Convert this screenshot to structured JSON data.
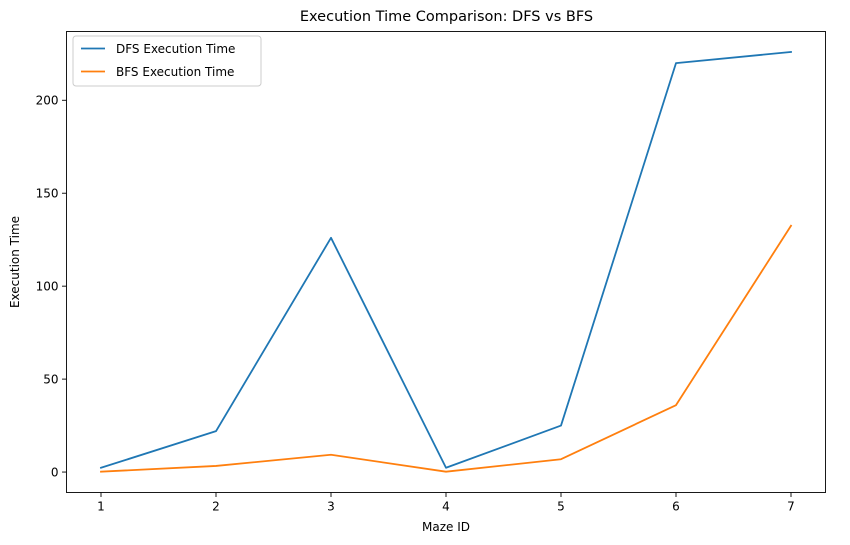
{
  "chart_data": {
    "type": "line",
    "title": "Execution Time Comparison: DFS vs BFS",
    "xlabel": "Maze ID",
    "ylabel": "Execution Time",
    "x": [
      1,
      2,
      3,
      4,
      5,
      6,
      7
    ],
    "xlim": [
      0.7,
      7.3
    ],
    "ylim": [
      -11,
      237
    ],
    "xticks": [
      1,
      2,
      3,
      4,
      5,
      6,
      7
    ],
    "yticks": [
      0,
      50,
      100,
      150,
      200
    ],
    "grid": false,
    "legend_position": "top-left",
    "series": [
      {
        "name": "DFS Execution Time",
        "color": "#1f77b4",
        "values": [
          2.3,
          22,
          126,
          2.3,
          25,
          220,
          226
        ]
      },
      {
        "name": "BFS Execution Time",
        "color": "#ff7f0e",
        "values": [
          0.2,
          3.3,
          9.3,
          0.2,
          6.9,
          36,
          132.5
        ]
      }
    ]
  }
}
